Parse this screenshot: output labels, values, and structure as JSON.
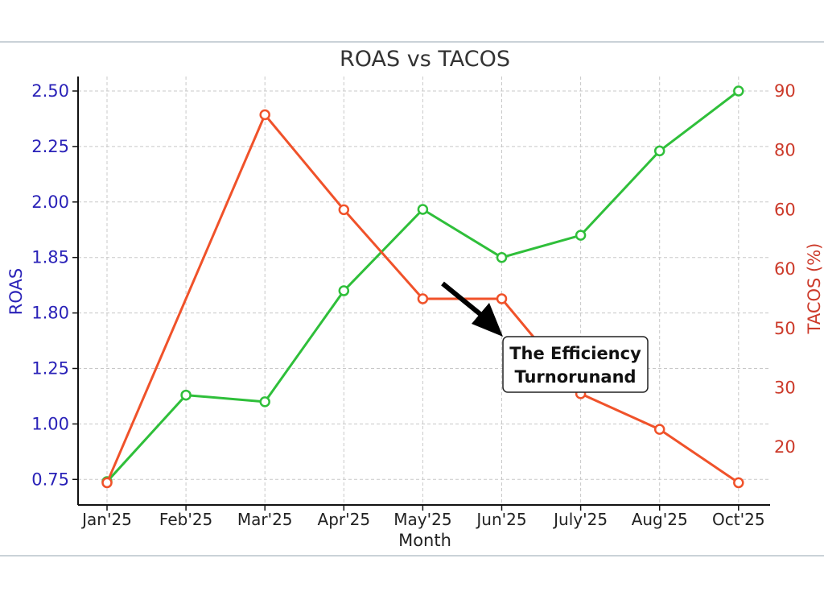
{
  "chart_data": {
    "type": "line",
    "title": "ROAS vs TACOS",
    "xlabel": "Month",
    "ylabel_left": "ROAS",
    "ylabel_right": "TACOS (%)",
    "categories": [
      "Jan'25",
      "Feb'25",
      "Mar'25",
      "Apr'25",
      "May'25",
      "Jun'25",
      "July'25",
      "Aug'25",
      "Oct'25"
    ],
    "left_ticks": [
      "2.50",
      "2.25",
      "2.00",
      "1.85",
      "1.80",
      "1.25",
      "1.00",
      "0.75"
    ],
    "right_ticks": [
      "90",
      "80",
      "60",
      "60",
      "50",
      "30",
      "20"
    ],
    "grid": true,
    "series": [
      {
        "name": "ROAS",
        "axis": "left",
        "color": "#2fbf3a",
        "values": [
          0.74,
          1.13,
          1.1,
          1.82,
          1.98,
          1.85,
          1.91,
          2.23,
          2.5
        ]
      },
      {
        "name": "TACOS (%)",
        "axis": "right",
        "color": "#f0522a",
        "values": [
          14,
          null,
          86,
          60,
          55,
          55,
          29,
          23,
          14
        ]
      }
    ],
    "annotation": {
      "line1": "The Efficiency",
      "line2": "Turnorunand"
    }
  },
  "colors": {
    "left_axis": "#2a22b8",
    "right_axis": "#cc3a2a"
  }
}
